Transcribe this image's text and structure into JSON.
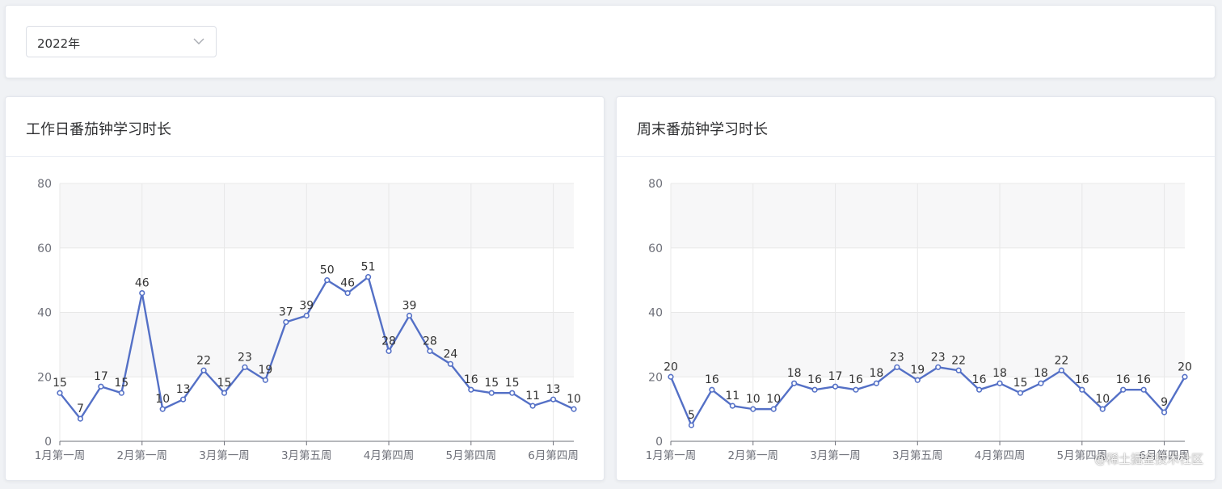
{
  "filter": {
    "year_value": "2022年",
    "icon": "chevron-down-icon"
  },
  "watermark": "@稀土掘金技术社区",
  "colors": {
    "line": "#5470c6",
    "band": "#f7f7f8",
    "grid": "#e8e8e8",
    "axis": "#6e7079"
  },
  "chart_data": [
    {
      "type": "line",
      "title": "工作日番茄钟学习时长",
      "xlabel": "",
      "ylabel": "",
      "ylim": [
        0,
        80
      ],
      "yticks": [
        0,
        20,
        40,
        60,
        80
      ],
      "x_tick_labels": [
        "1月第一周",
        "2月第一周",
        "3月第一周",
        "3月第五周",
        "4月第四周",
        "5月第四周",
        "6月第四周"
      ],
      "grid": true,
      "values": [
        15,
        7,
        17,
        15,
        46,
        10,
        13,
        22,
        15,
        23,
        19,
        37,
        39,
        50,
        46,
        51,
        28,
        39,
        28,
        24,
        16,
        15,
        15,
        11,
        13,
        10
      ]
    },
    {
      "type": "line",
      "title": "周末番茄钟学习时长",
      "xlabel": "",
      "ylabel": "",
      "ylim": [
        0,
        80
      ],
      "yticks": [
        0,
        20,
        40,
        60,
        80
      ],
      "x_tick_labels": [
        "1月第一周",
        "2月第一周",
        "3月第一周",
        "3月第五周",
        "4月第四周",
        "5月第四周",
        "6月第四周"
      ],
      "grid": true,
      "values": [
        20,
        5,
        16,
        11,
        10,
        10,
        18,
        16,
        17,
        16,
        18,
        23,
        19,
        23,
        22,
        16,
        18,
        15,
        18,
        22,
        16,
        10,
        16,
        16,
        9,
        20
      ]
    }
  ]
}
